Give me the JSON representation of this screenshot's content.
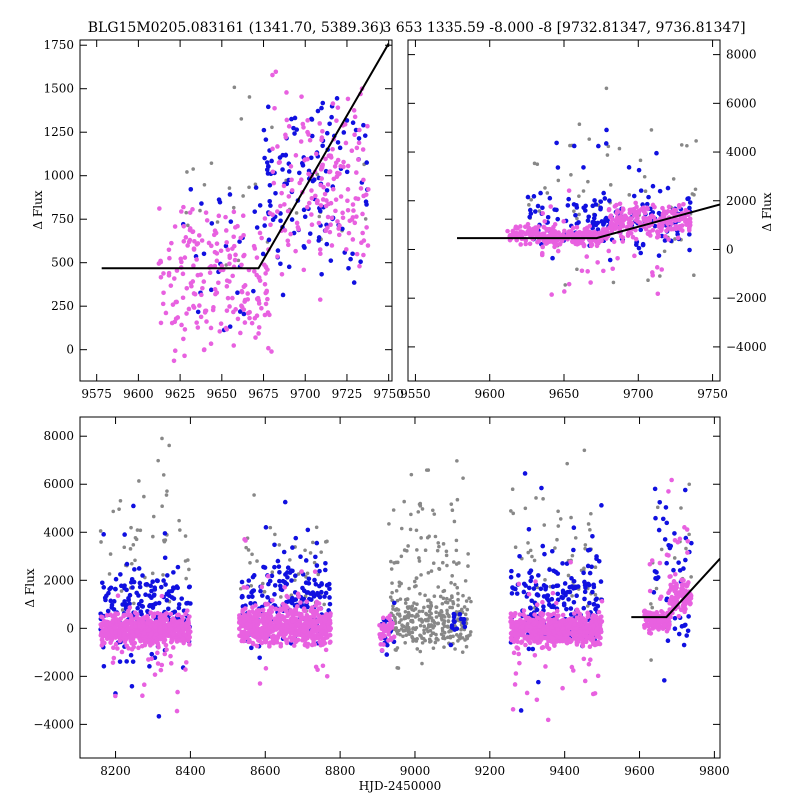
{
  "chart_data": [
    {
      "type": "scatter",
      "panel": "top-left",
      "title": "BLG15M0205.083161 (1341.70, 5389.36)",
      "xlabel": "",
      "ylabel": "Δ Flux",
      "y_axis_side": "left",
      "xlim": [
        9565,
        9752
      ],
      "ylim": [
        -180,
        1780
      ],
      "xticks": [
        9575,
        9600,
        9625,
        9650,
        9675,
        9700,
        9725,
        9750
      ],
      "xtick_labels": [
        "9575",
        "9600",
        "9625",
        "9650",
        "9675",
        "9700",
        "9725",
        "9750"
      ],
      "yticks": [
        0,
        250,
        500,
        750,
        1000,
        1250,
        1500,
        1750
      ],
      "ytick_labels": [
        "0",
        "250",
        "500",
        "750",
        "1000",
        "1250",
        "1500",
        "1750"
      ],
      "series": [
        {
          "color": "#888888",
          "groups": [
            {
              "xmin": 9625,
              "xmax": 9740,
              "ymin": 100,
              "ymax": 1750,
              "n": 30,
              "seed": 11
            }
          ]
        },
        {
          "color": "#1010e0",
          "groups": [
            {
              "xmin": 9625,
              "xmax": 9675,
              "ymin": -100,
              "ymax": 1450,
              "n": 30,
              "seed": 21
            },
            {
              "xmin": 9675,
              "xmax": 9738,
              "ymin": 150,
              "ymax": 1750,
              "n": 130,
              "seed": 22
            }
          ]
        },
        {
          "color": "#e861e0",
          "groups": [
            {
              "xmin": 9612,
              "xmax": 9680,
              "ymin": -160,
              "ymax": 1000,
              "n": 210,
              "seed": 31
            },
            {
              "xmin": 9680,
              "xmax": 9738,
              "ymin": 200,
              "ymax": 1760,
              "n": 180,
              "seed": 32
            }
          ]
        }
      ],
      "model_line": [
        [
          9578,
          468
        ],
        [
          9672,
          468
        ],
        [
          9750,
          1760
        ]
      ],
      "grid": false
    },
    {
      "type": "scatter",
      "panel": "top-right",
      "title": "3 653 1335.59 -8.000 -8 [9732.81347, 9736.81347]",
      "xlabel": "",
      "ylabel": "Δ Flux",
      "y_axis_side": "right",
      "xlim": [
        9545,
        9755
      ],
      "ylim": [
        -5400,
        8600
      ],
      "xticks": [
        9550,
        9600,
        9650,
        9700,
        9750
      ],
      "xtick_labels": [
        "9550",
        "9600",
        "9650",
        "9700",
        "9750"
      ],
      "yticks": [
        -4000,
        -2000,
        0,
        2000,
        4000,
        6000,
        8000
      ],
      "ytick_labels": [
        "−4000",
        "−2000",
        "0",
        "2000",
        "4000",
        "6000",
        "8000"
      ],
      "series": [
        {
          "color": "#888888",
          "groups": [
            {
              "xmin": 9625,
              "xmax": 9740,
              "ymin": -3000,
              "ymax": 7500,
              "n": 60,
              "seed": 41
            }
          ]
        },
        {
          "color": "#1010e0",
          "groups": [
            {
              "xmin": 9625,
              "xmax": 9735,
              "ymin": -500,
              "ymax": 3000,
              "n": 150,
              "seed": 51
            },
            {
              "xmin": 9630,
              "xmax": 9735,
              "ymin": -4000,
              "ymax": 8300,
              "n": 20,
              "seed": 52
            }
          ]
        },
        {
          "color": "#e861e0",
          "groups": [
            {
              "xmin": 9612,
              "xmax": 9680,
              "ymin": 0,
              "ymax": 1100,
              "n": 260,
              "seed": 61
            },
            {
              "xmin": 9680,
              "xmax": 9735,
              "ymin": 200,
              "ymax": 2200,
              "n": 220,
              "seed": 62
            },
            {
              "xmin": 9630,
              "xmax": 9720,
              "ymin": -2500,
              "ymax": 2500,
              "n": 40,
              "seed": 63
            }
          ]
        }
      ],
      "model_line": [
        [
          9578,
          468
        ],
        [
          9672,
          468
        ],
        [
          9755,
          1850
        ]
      ],
      "grid": false
    },
    {
      "type": "scatter",
      "panel": "bottom",
      "title": "",
      "xlabel": "HJD-2450000",
      "ylabel": "Δ Flux",
      "y_axis_side": "left",
      "xlim": [
        8105,
        9815
      ],
      "ylim": [
        -5400,
        8800
      ],
      "xticks": [
        8200,
        8400,
        8600,
        8800,
        9000,
        9200,
        9400,
        9600,
        9800
      ],
      "xtick_labels": [
        "8200",
        "8400",
        "8600",
        "8800",
        "9000",
        "9200",
        "9400",
        "9600",
        "9800"
      ],
      "yticks": [
        -4000,
        -2000,
        0,
        2000,
        4000,
        6000,
        8000
      ],
      "ytick_labels": [
        "−4000",
        "−2000",
        "0",
        "2000",
        "4000",
        "6000",
        "8000"
      ],
      "series": [
        {
          "color": "#888888",
          "groups": [
            {
              "xmin": 8160,
              "xmax": 8400,
              "ymin": -1500,
              "ymax": 8600,
              "n": 55,
              "seed": 71
            },
            {
              "xmin": 8530,
              "xmax": 8770,
              "ymin": -1500,
              "ymax": 6500,
              "n": 45,
              "seed": 72
            },
            {
              "xmin": 8940,
              "xmax": 9140,
              "ymin": -1500,
              "ymax": 2000,
              "n": 250,
              "seed": 73
            },
            {
              "xmin": 8930,
              "xmax": 9150,
              "ymin": -3800,
              "ymax": 8800,
              "n": 120,
              "seed": 74
            },
            {
              "xmin": 9255,
              "xmax": 9500,
              "ymin": -1500,
              "ymax": 8600,
              "n": 55,
              "seed": 75
            },
            {
              "xmin": 9630,
              "xmax": 9740,
              "ymin": -2000,
              "ymax": 8500,
              "n": 18,
              "seed": 76
            }
          ]
        },
        {
          "color": "#1010e0",
          "groups": [
            {
              "xmin": 8160,
              "xmax": 8400,
              "ymin": -1500,
              "ymax": 3500,
              "n": 150,
              "seed": 81
            },
            {
              "xmin": 8160,
              "xmax": 8400,
              "ymin": -5000,
              "ymax": 6200,
              "n": 30,
              "seed": 82
            },
            {
              "xmin": 8535,
              "xmax": 8775,
              "ymin": -1500,
              "ymax": 4000,
              "n": 160,
              "seed": 83
            },
            {
              "xmin": 8540,
              "xmax": 8770,
              "ymin": -3500,
              "ymax": 8000,
              "n": 30,
              "seed": 84
            },
            {
              "xmin": 8910,
              "xmax": 8945,
              "ymin": -1500,
              "ymax": 1500,
              "n": 20,
              "seed": 85
            },
            {
              "xmin": 9095,
              "xmax": 9135,
              "ymin": -1200,
              "ymax": 1500,
              "n": 15,
              "seed": 86
            },
            {
              "xmin": 9255,
              "xmax": 9500,
              "ymin": -1500,
              "ymax": 3800,
              "n": 170,
              "seed": 87
            },
            {
              "xmin": 9260,
              "xmax": 9500,
              "ymin": -4500,
              "ymax": 8500,
              "n": 30,
              "seed": 88
            },
            {
              "xmin": 9635,
              "xmax": 9740,
              "ymin": -3800,
              "ymax": 8300,
              "n": 45,
              "seed": 89
            }
          ]
        },
        {
          "color": "#e861e0",
          "groups": [
            {
              "xmin": 8160,
              "xmax": 8400,
              "ymin": -1000,
              "ymax": 900,
              "n": 600,
              "seed": 91
            },
            {
              "xmin": 8170,
              "xmax": 8390,
              "ymin": -4500,
              "ymax": 3000,
              "n": 40,
              "seed": 92
            },
            {
              "xmin": 8530,
              "xmax": 8775,
              "ymin": -1000,
              "ymax": 1200,
              "n": 620,
              "seed": 93
            },
            {
              "xmin": 8540,
              "xmax": 8770,
              "ymin": -3500,
              "ymax": 5000,
              "n": 45,
              "seed": 94
            },
            {
              "xmin": 8905,
              "xmax": 8945,
              "ymin": -1000,
              "ymax": 800,
              "n": 50,
              "seed": 95
            },
            {
              "xmin": 9255,
              "xmax": 9500,
              "ymin": -1000,
              "ymax": 900,
              "n": 600,
              "seed": 96
            },
            {
              "xmin": 9260,
              "xmax": 9500,
              "ymin": -4500,
              "ymax": 3500,
              "n": 40,
              "seed": 97
            },
            {
              "xmin": 9612,
              "xmax": 9680,
              "ymin": -300,
              "ymax": 900,
              "n": 120,
              "seed": 98
            },
            {
              "xmin": 9680,
              "xmax": 9738,
              "ymin": 300,
              "ymax": 2500,
              "n": 110,
              "seed": 99
            },
            {
              "xmin": 9625,
              "xmax": 9735,
              "ymin": -2500,
              "ymax": 8600,
              "n": 20,
              "seed": 100
            }
          ]
        }
      ],
      "model_line": [
        [
          9578,
          468
        ],
        [
          9672,
          468
        ],
        [
          9815,
          2900
        ]
      ],
      "grid": false
    }
  ]
}
